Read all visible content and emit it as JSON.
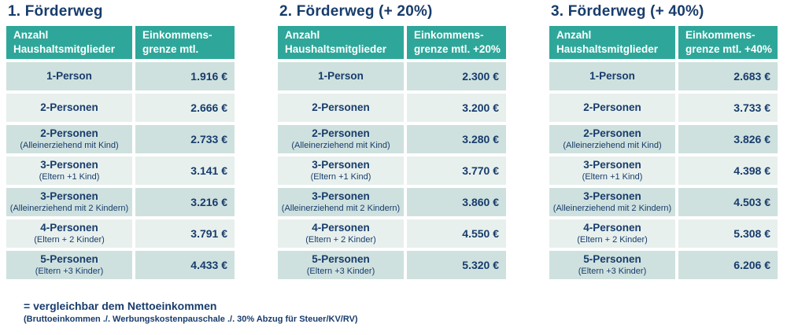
{
  "colors": {
    "header_bg": "#2ea79a",
    "row_dark": "#cee1de",
    "row_light": "#e7f0ed",
    "text_navy": "#183c6c",
    "header_text": "#ffffff",
    "page_bg": "#ffffff"
  },
  "tables": [
    {
      "title": "1. Förderweg",
      "headers": {
        "col1": [
          "Anzahl",
          "Haushaltsmitglieder"
        ],
        "col2": [
          "Einkommens-",
          "grenze mtl."
        ]
      },
      "rows": [
        {
          "label": "1-Person",
          "sublabel": "",
          "value": "1.916 €"
        },
        {
          "label": "2-Personen",
          "sublabel": "",
          "value": "2.666 €"
        },
        {
          "label": "2-Personen",
          "sublabel": "(Alleinerziehend mit Kind)",
          "value": "2.733 €"
        },
        {
          "label": "3-Personen",
          "sublabel": "(Eltern +1 Kind)",
          "value": "3.141 €"
        },
        {
          "label": "3-Personen",
          "sublabel": "(Alleinerziehend mit 2 Kindern)",
          "value": "3.216 €"
        },
        {
          "label": "4-Personen",
          "sublabel": "(Eltern + 2 Kinder)",
          "value": "3.791 €"
        },
        {
          "label": "5-Personen",
          "sublabel": "(Eltern +3 Kinder)",
          "value": "4.433 €"
        }
      ]
    },
    {
      "title": "2. Förderweg (+ 20%)",
      "headers": {
        "col1": [
          "Anzahl",
          "Haushaltsmitglieder"
        ],
        "col2": [
          "Einkommens-",
          "grenze mtl. +20%"
        ]
      },
      "rows": [
        {
          "label": "1-Person",
          "sublabel": "",
          "value": "2.300 €"
        },
        {
          "label": "2-Personen",
          "sublabel": "",
          "value": "3.200 €"
        },
        {
          "label": "2-Personen",
          "sublabel": "(Alleinerziehend mit Kind)",
          "value": "3.280 €"
        },
        {
          "label": "3-Personen",
          "sublabel": "(Eltern +1 Kind)",
          "value": "3.770 €"
        },
        {
          "label": "3-Personen",
          "sublabel": "(Alleinerziehend mit 2 Kindern)",
          "value": "3.860 €"
        },
        {
          "label": "4-Personen",
          "sublabel": "(Eltern + 2 Kinder)",
          "value": "4.550 €"
        },
        {
          "label": "5-Personen",
          "sublabel": "(Eltern +3 Kinder)",
          "value": "5.320 €"
        }
      ]
    },
    {
      "title": "3. Förderweg (+ 40%)",
      "headers": {
        "col1": [
          "Anzahl",
          "Haushaltsmitglieder"
        ],
        "col2": [
          "Einkommens-",
          "grenze mtl. +40%"
        ]
      },
      "rows": [
        {
          "label": "1-Person",
          "sublabel": "",
          "value": "2.683 €"
        },
        {
          "label": "2-Personen",
          "sublabel": "",
          "value": "3.733 €"
        },
        {
          "label": "2-Personen",
          "sublabel": "(Alleinerziehend mit Kind)",
          "value": "3.826 €"
        },
        {
          "label": "3-Personen",
          "sublabel": "(Eltern +1 Kind)",
          "value": "4.398 €"
        },
        {
          "label": "3-Personen",
          "sublabel": "(Alleinerziehend mit 2 Kindern)",
          "value": "4.503 €"
        },
        {
          "label": "4-Personen",
          "sublabel": "(Eltern + 2 Kinder)",
          "value": "5.308 €"
        },
        {
          "label": "5-Personen",
          "sublabel": "(Eltern +3 Kinder)",
          "value": "6.206 €"
        }
      ]
    }
  ],
  "footnote": {
    "line1": "= vergleichbar dem Nettoeinkommen",
    "line2": "(Bruttoeinkommen ./. Werbungskostenpauschale ./. 30% Abzug für Steuer/KV/RV)"
  }
}
